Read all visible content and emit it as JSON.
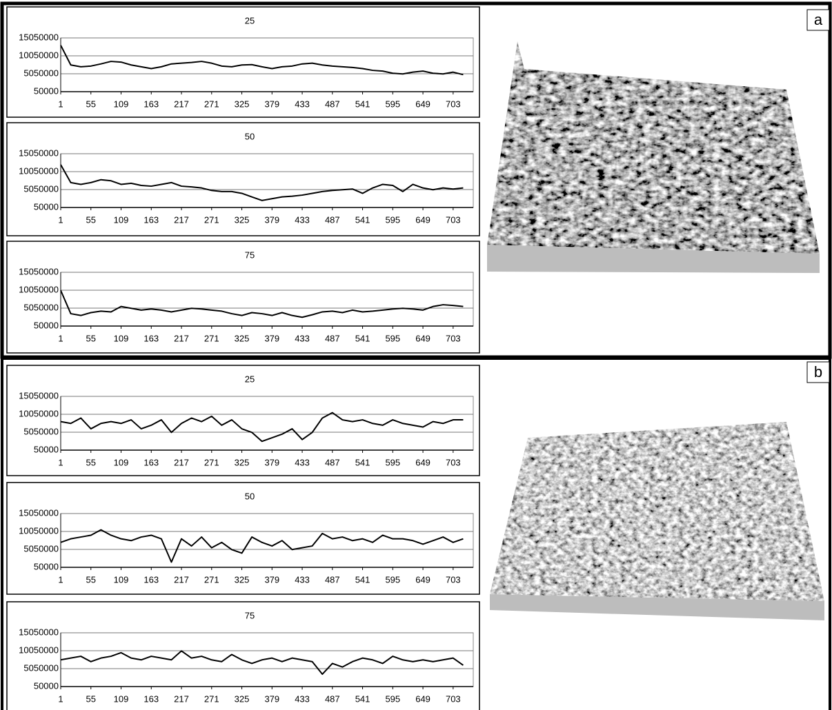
{
  "panel_labels": [
    "a",
    "b"
  ],
  "chart_data": [
    {
      "type": "line",
      "title": "25",
      "grid": true,
      "color": "#000000",
      "x": [
        1,
        19,
        37,
        55,
        73,
        91,
        109,
        127,
        145,
        163,
        181,
        199,
        217,
        235,
        253,
        271,
        289,
        307,
        325,
        343,
        361,
        379,
        397,
        415,
        433,
        451,
        469,
        487,
        505,
        523,
        541,
        559,
        577,
        595,
        613,
        631,
        649,
        667,
        685,
        703,
        721
      ],
      "values": [
        13000000,
        7500000,
        7000000,
        7200000,
        7800000,
        8500000,
        8300000,
        7500000,
        7000000,
        6500000,
        7000000,
        7800000,
        8000000,
        8200000,
        8500000,
        8000000,
        7200000,
        7000000,
        7500000,
        7600000,
        7000000,
        6500000,
        7000000,
        7200000,
        7800000,
        8000000,
        7500000,
        7200000,
        7000000,
        6800000,
        6500000,
        6000000,
        5800000,
        5200000,
        5000000,
        5500000,
        5800000,
        5200000,
        5000000,
        5500000,
        4800000
      ],
      "xlim": [
        1,
        739
      ],
      "xticks": [
        1,
        55,
        109,
        163,
        217,
        271,
        325,
        379,
        433,
        487,
        541,
        595,
        649,
        703
      ],
      "ylim": [
        50000,
        15050000
      ],
      "yticks": [
        50000,
        5050000,
        10050000,
        15050000
      ]
    },
    {
      "type": "line",
      "title": "50",
      "grid": true,
      "color": "#000000",
      "x": [
        1,
        19,
        37,
        55,
        73,
        91,
        109,
        127,
        145,
        163,
        181,
        199,
        217,
        235,
        253,
        271,
        289,
        307,
        325,
        343,
        361,
        379,
        397,
        415,
        433,
        451,
        469,
        487,
        505,
        523,
        541,
        559,
        577,
        595,
        613,
        631,
        649,
        667,
        685,
        703,
        721
      ],
      "values": [
        12000000,
        7000000,
        6500000,
        7000000,
        7800000,
        7500000,
        6500000,
        6800000,
        6200000,
        6000000,
        6500000,
        7000000,
        6000000,
        5800000,
        5500000,
        4800000,
        4500000,
        4500000,
        4000000,
        3000000,
        2000000,
        2500000,
        3000000,
        3200000,
        3500000,
        4000000,
        4500000,
        4800000,
        5000000,
        5200000,
        4000000,
        5500000,
        6500000,
        6200000,
        4500000,
        6500000,
        5500000,
        5000000,
        5500000,
        5200000,
        5500000
      ],
      "xlim": [
        1,
        739
      ],
      "xticks": [
        1,
        55,
        109,
        163,
        217,
        271,
        325,
        379,
        433,
        487,
        541,
        595,
        649,
        703
      ],
      "ylim": [
        50000,
        15050000
      ],
      "yticks": [
        50000,
        5050000,
        10050000,
        15050000
      ]
    },
    {
      "type": "line",
      "title": "75",
      "grid": true,
      "color": "#000000",
      "x": [
        1,
        19,
        37,
        55,
        73,
        91,
        109,
        127,
        145,
        163,
        181,
        199,
        217,
        235,
        253,
        271,
        289,
        307,
        325,
        343,
        361,
        379,
        397,
        415,
        433,
        451,
        469,
        487,
        505,
        523,
        541,
        559,
        577,
        595,
        613,
        631,
        649,
        667,
        685,
        703,
        721
      ],
      "values": [
        10000000,
        3500000,
        3000000,
        3800000,
        4200000,
        4000000,
        5500000,
        5000000,
        4500000,
        4800000,
        4500000,
        4000000,
        4500000,
        5000000,
        4800000,
        4500000,
        4200000,
        3500000,
        3000000,
        3800000,
        3500000,
        3000000,
        3800000,
        3000000,
        2500000,
        3200000,
        4000000,
        4200000,
        3800000,
        4500000,
        4000000,
        4200000,
        4500000,
        4800000,
        5000000,
        4800000,
        4500000,
        5500000,
        6000000,
        5800000,
        5500000
      ],
      "xlim": [
        1,
        739
      ],
      "xticks": [
        1,
        55,
        109,
        163,
        217,
        271,
        325,
        379,
        433,
        487,
        541,
        595,
        649,
        703
      ],
      "ylim": [
        50000,
        15050000
      ],
      "yticks": [
        50000,
        5050000,
        10050000,
        15050000
      ]
    },
    {
      "type": "line",
      "title": "25",
      "grid": true,
      "color": "#000000",
      "x": [
        1,
        19,
        37,
        55,
        73,
        91,
        109,
        127,
        145,
        163,
        181,
        199,
        217,
        235,
        253,
        271,
        289,
        307,
        325,
        343,
        361,
        379,
        397,
        415,
        433,
        451,
        469,
        487,
        505,
        523,
        541,
        559,
        577,
        595,
        613,
        631,
        649,
        667,
        685,
        703,
        721
      ],
      "values": [
        8000000,
        7500000,
        9000000,
        6000000,
        7500000,
        8000000,
        7500000,
        8500000,
        6000000,
        7000000,
        8500000,
        5000000,
        7500000,
        9000000,
        8000000,
        9500000,
        7000000,
        8500000,
        6000000,
        5000000,
        2500000,
        3500000,
        4500000,
        6000000,
        3000000,
        5000000,
        9000000,
        10500000,
        8500000,
        8000000,
        8500000,
        7500000,
        7000000,
        8500000,
        7500000,
        7000000,
        6500000,
        8000000,
        7500000,
        8500000,
        8500000
      ],
      "xlim": [
        1,
        739
      ],
      "xticks": [
        1,
        55,
        109,
        163,
        217,
        271,
        325,
        379,
        433,
        487,
        541,
        595,
        649,
        703
      ],
      "ylim": [
        50000,
        15050000
      ],
      "yticks": [
        50000,
        5050000,
        10050000,
        15050000
      ]
    },
    {
      "type": "line",
      "title": "50",
      "grid": true,
      "color": "#000000",
      "x": [
        1,
        19,
        37,
        55,
        73,
        91,
        109,
        127,
        145,
        163,
        181,
        199,
        217,
        235,
        253,
        271,
        289,
        307,
        325,
        343,
        361,
        379,
        397,
        415,
        433,
        451,
        469,
        487,
        505,
        523,
        541,
        559,
        577,
        595,
        613,
        631,
        649,
        667,
        685,
        703,
        721
      ],
      "values": [
        7000000,
        8000000,
        8500000,
        9000000,
        10500000,
        9000000,
        8000000,
        7500000,
        8500000,
        9000000,
        8000000,
        1500000,
        8000000,
        6000000,
        8500000,
        5500000,
        7000000,
        5000000,
        4000000,
        8500000,
        7000000,
        6000000,
        7500000,
        5000000,
        5500000,
        6000000,
        9500000,
        8000000,
        8500000,
        7500000,
        8000000,
        7000000,
        9000000,
        8000000,
        8000000,
        7500000,
        6500000,
        7500000,
        8500000,
        7000000,
        8000000
      ],
      "xlim": [
        1,
        739
      ],
      "xticks": [
        1,
        55,
        109,
        163,
        217,
        271,
        325,
        379,
        433,
        487,
        541,
        595,
        649,
        703
      ],
      "ylim": [
        50000,
        15050000
      ],
      "yticks": [
        50000,
        5050000,
        10050000,
        15050000
      ]
    },
    {
      "type": "line",
      "title": "75",
      "grid": true,
      "color": "#000000",
      "x": [
        1,
        19,
        37,
        55,
        73,
        91,
        109,
        127,
        145,
        163,
        181,
        199,
        217,
        235,
        253,
        271,
        289,
        307,
        325,
        343,
        361,
        379,
        397,
        415,
        433,
        451,
        469,
        487,
        505,
        523,
        541,
        559,
        577,
        595,
        613,
        631,
        649,
        667,
        685,
        703,
        721
      ],
      "values": [
        7500000,
        8000000,
        8500000,
        7000000,
        8000000,
        8500000,
        9500000,
        8000000,
        7500000,
        8500000,
        8000000,
        7500000,
        10000000,
        8000000,
        8500000,
        7500000,
        7000000,
        9000000,
        7500000,
        6500000,
        7500000,
        8000000,
        7000000,
        8000000,
        7500000,
        7000000,
        3500000,
        6500000,
        5500000,
        7000000,
        8000000,
        7500000,
        6500000,
        8500000,
        7500000,
        7000000,
        7500000,
        7000000,
        7500000,
        8000000,
        6000000
      ],
      "xlim": [
        1,
        739
      ],
      "xticks": [
        1,
        55,
        109,
        163,
        217,
        271,
        325,
        379,
        433,
        487,
        541,
        595,
        649,
        703
      ],
      "ylim": [
        50000,
        15050000
      ],
      "yticks": [
        50000,
        5050000,
        10050000,
        15050000
      ]
    }
  ]
}
